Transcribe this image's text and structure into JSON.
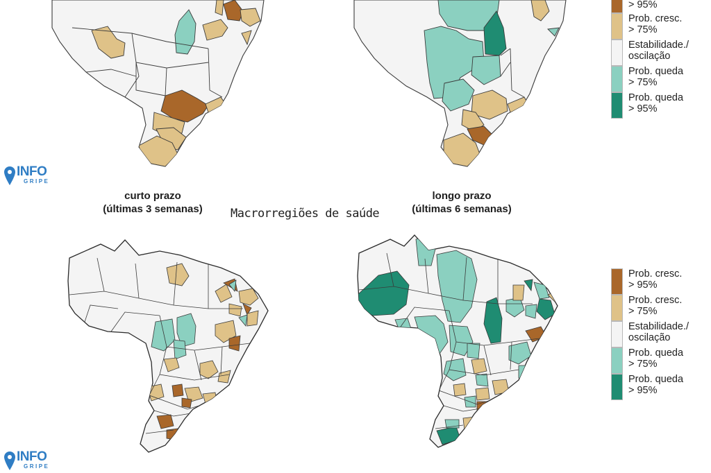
{
  "colors": {
    "strong_up": "#a9672a",
    "up": "#dfc288",
    "stable": "#f4f4f4",
    "down": "#8bd0c0",
    "strong_down": "#1f8c72",
    "border": "#3a3a3a",
    "logo": "#2f7dc4"
  },
  "section_title": "Macrorregiões de saúde",
  "panels": {
    "short_term": {
      "title_line1": "curto prazo",
      "title_line2": "(últimas 3 semanas)"
    },
    "long_term": {
      "title_line1": "longo prazo",
      "title_line2": "(últimas 6 semanas)"
    }
  },
  "legend_top": {
    "items": [
      {
        "key": "strong_up",
        "label": "> 95%"
      },
      {
        "key": "up",
        "label": "Prob. cresc.\n> 75%"
      },
      {
        "key": "stable",
        "label": "Estabilidade./\noscilação"
      },
      {
        "key": "down",
        "label": "Prob. queda\n> 75%"
      },
      {
        "key": "strong_down",
        "label": "Prob. queda\n> 95%"
      }
    ]
  },
  "legend_bottom": {
    "items": [
      {
        "key": "strong_up",
        "label": "Prob. cresc.\n> 95%"
      },
      {
        "key": "up",
        "label": "Prob. cresc.\n> 75%"
      },
      {
        "key": "stable",
        "label": "Estabilidade./\noscilação"
      },
      {
        "key": "down",
        "label": "Prob. queda\n> 75%"
      },
      {
        "key": "strong_down",
        "label": "Prob. queda\n> 95%"
      }
    ]
  },
  "logos": [
    {
      "main": "INFO",
      "sub": "GRIPE",
      "icon": "map-pin-icon"
    },
    {
      "main": "INFO",
      "sub": "GRIPE",
      "icon": "map-pin-icon"
    }
  ]
}
